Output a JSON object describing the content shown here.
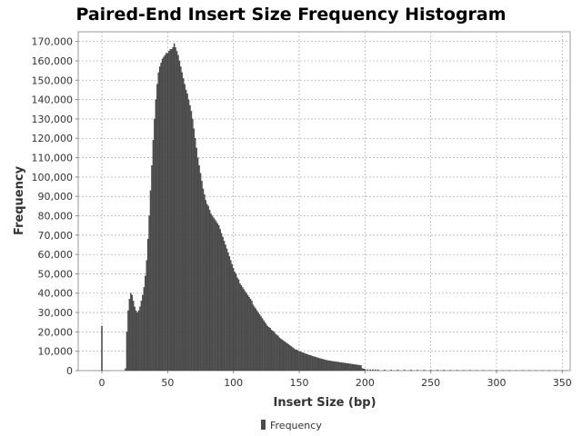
{
  "chart_data": {
    "type": "bar",
    "title": "Paired-End Insert Size Frequency Histogram",
    "xlabel": "Insert Size (bp)",
    "ylabel": "Frequency",
    "xlim": [
      -18,
      356
    ],
    "ylim": [
      0,
      175000
    ],
    "x_ticks": [
      0,
      50,
      100,
      150,
      200,
      250,
      300,
      350
    ],
    "y_ticks": [
      0,
      10000,
      20000,
      30000,
      40000,
      50000,
      60000,
      70000,
      80000,
      90000,
      100000,
      110000,
      120000,
      130000,
      140000,
      150000,
      160000,
      170000
    ],
    "x_tick_labels": [
      "0",
      "50",
      "100",
      "150",
      "200",
      "250",
      "300",
      "350"
    ],
    "y_tick_labels": [
      "0",
      "10,000",
      "20,000",
      "30,000",
      "40,000",
      "50,000",
      "60,000",
      "70,000",
      "80,000",
      "90,000",
      "100,000",
      "110,000",
      "120,000",
      "130,000",
      "140,000",
      "150,000",
      "160,000",
      "170,000"
    ],
    "grid": true,
    "legend_position": "bottom-center",
    "series": [
      {
        "name": "Frequency",
        "color": "#4a4a4a",
        "points": [
          [
            0,
            23000
          ],
          [
            18,
            1000
          ],
          [
            19,
            20000
          ],
          [
            20,
            31000
          ],
          [
            21,
            37000
          ],
          [
            22,
            40000
          ],
          [
            23,
            39000
          ],
          [
            24,
            36000
          ],
          [
            25,
            33000
          ],
          [
            26,
            31000
          ],
          [
            27,
            30000
          ],
          [
            28,
            31000
          ],
          [
            29,
            33000
          ],
          [
            30,
            36000
          ],
          [
            31,
            39000
          ],
          [
            32,
            43000
          ],
          [
            33,
            49000
          ],
          [
            34,
            57000
          ],
          [
            35,
            68000
          ],
          [
            36,
            80000
          ],
          [
            37,
            93000
          ],
          [
            38,
            106000
          ],
          [
            39,
            119000
          ],
          [
            40,
            130000
          ],
          [
            41,
            140000
          ],
          [
            42,
            148000
          ],
          [
            43,
            154000
          ],
          [
            44,
            157000
          ],
          [
            45,
            159000
          ],
          [
            46,
            161000
          ],
          [
            47,
            162000
          ],
          [
            48,
            163000
          ],
          [
            49,
            164000
          ],
          [
            50,
            164000
          ],
          [
            51,
            165000
          ],
          [
            52,
            166000
          ],
          [
            53,
            166000
          ],
          [
            54,
            167000
          ],
          [
            55,
            169000
          ],
          [
            56,
            167000
          ],
          [
            57,
            165000
          ],
          [
            58,
            163000
          ],
          [
            59,
            160000
          ],
          [
            60,
            157000
          ],
          [
            61,
            154000
          ],
          [
            62,
            151000
          ],
          [
            63,
            148000
          ],
          [
            64,
            145000
          ],
          [
            65,
            143000
          ],
          [
            66,
            140000
          ],
          [
            67,
            137000
          ],
          [
            68,
            134000
          ],
          [
            69,
            130000
          ],
          [
            70,
            125000
          ],
          [
            71,
            120000
          ],
          [
            72,
            115000
          ],
          [
            73,
            110000
          ],
          [
            74,
            106000
          ],
          [
            75,
            102000
          ],
          [
            76,
            98000
          ],
          [
            77,
            94000
          ],
          [
            78,
            91000
          ],
          [
            79,
            88000
          ],
          [
            80,
            86000
          ],
          [
            81,
            85000
          ],
          [
            82,
            83000
          ],
          [
            83,
            81000
          ],
          [
            84,
            80000
          ],
          [
            85,
            79000
          ],
          [
            86,
            78000
          ],
          [
            87,
            77000
          ],
          [
            88,
            76000
          ],
          [
            89,
            75000
          ],
          [
            90,
            73000
          ],
          [
            91,
            71000
          ],
          [
            92,
            69000
          ],
          [
            93,
            67000
          ],
          [
            94,
            65000
          ],
          [
            95,
            63000
          ],
          [
            96,
            61000
          ],
          [
            97,
            59000
          ],
          [
            98,
            57000
          ],
          [
            99,
            55000
          ],
          [
            100,
            53000
          ],
          [
            101,
            51000
          ],
          [
            102,
            50000
          ],
          [
            103,
            48000
          ],
          [
            104,
            47000
          ],
          [
            105,
            45000
          ],
          [
            106,
            44000
          ],
          [
            107,
            43000
          ],
          [
            108,
            42000
          ],
          [
            109,
            41000
          ],
          [
            110,
            40000
          ],
          [
            111,
            39000
          ],
          [
            112,
            38000
          ],
          [
            113,
            37000
          ],
          [
            114,
            36000
          ],
          [
            115,
            34000
          ],
          [
            116,
            33000
          ],
          [
            117,
            32000
          ],
          [
            118,
            31000
          ],
          [
            119,
            30000
          ],
          [
            120,
            29000
          ],
          [
            121,
            28000
          ],
          [
            122,
            27000
          ],
          [
            123,
            26000
          ],
          [
            124,
            25000
          ],
          [
            125,
            24000
          ],
          [
            126,
            23000
          ],
          [
            127,
            22500
          ],
          [
            128,
            22000
          ],
          [
            129,
            21000
          ],
          [
            130,
            20500
          ],
          [
            131,
            20000
          ],
          [
            132,
            19000
          ],
          [
            133,
            18500
          ],
          [
            134,
            18000
          ],
          [
            135,
            17000
          ],
          [
            136,
            16500
          ],
          [
            137,
            16000
          ],
          [
            138,
            15500
          ],
          [
            139,
            15000
          ],
          [
            140,
            14500
          ],
          [
            141,
            14000
          ],
          [
            142,
            13500
          ],
          [
            143,
            13000
          ],
          [
            144,
            12500
          ],
          [
            145,
            12000
          ],
          [
            146,
            11500
          ],
          [
            147,
            11000
          ],
          [
            148,
            10800
          ],
          [
            149,
            10500
          ],
          [
            150,
            10000
          ],
          [
            151,
            9800
          ],
          [
            152,
            9500
          ],
          [
            153,
            9200
          ],
          [
            154,
            9000
          ],
          [
            155,
            8700
          ],
          [
            156,
            8500
          ],
          [
            157,
            8200
          ],
          [
            158,
            8000
          ],
          [
            159,
            7800
          ],
          [
            160,
            7500
          ],
          [
            161,
            7300
          ],
          [
            162,
            7100
          ],
          [
            163,
            6900
          ],
          [
            164,
            6700
          ],
          [
            165,
            6500
          ],
          [
            166,
            6300
          ],
          [
            167,
            6100
          ],
          [
            168,
            5900
          ],
          [
            169,
            5700
          ],
          [
            170,
            5500
          ],
          [
            171,
            5400
          ],
          [
            172,
            5200
          ],
          [
            173,
            5100
          ],
          [
            174,
            5000
          ],
          [
            175,
            4900
          ],
          [
            176,
            4800
          ],
          [
            177,
            4700
          ],
          [
            178,
            4600
          ],
          [
            179,
            4500
          ],
          [
            180,
            4400
          ],
          [
            181,
            4300
          ],
          [
            182,
            4200
          ],
          [
            183,
            4100
          ],
          [
            184,
            4000
          ],
          [
            185,
            3900
          ],
          [
            186,
            3800
          ],
          [
            187,
            3700
          ],
          [
            188,
            3600
          ],
          [
            189,
            3500
          ],
          [
            190,
            3400
          ],
          [
            191,
            3300
          ],
          [
            192,
            3200
          ],
          [
            193,
            3100
          ],
          [
            194,
            3000
          ],
          [
            195,
            2900
          ],
          [
            196,
            2800
          ],
          [
            197,
            2700
          ],
          [
            198,
            1200
          ],
          [
            199,
            900
          ],
          [
            200,
            750
          ],
          [
            202,
            650
          ],
          [
            204,
            600
          ],
          [
            206,
            550
          ],
          [
            208,
            500
          ],
          [
            210,
            480
          ],
          [
            215,
            450
          ],
          [
            220,
            420
          ],
          [
            225,
            400
          ],
          [
            230,
            380
          ],
          [
            235,
            360
          ],
          [
            240,
            340
          ],
          [
            245,
            320
          ],
          [
            250,
            300
          ],
          [
            255,
            280
          ],
          [
            260,
            270
          ],
          [
            265,
            260
          ],
          [
            270,
            250
          ],
          [
            275,
            240
          ],
          [
            280,
            230
          ],
          [
            285,
            220
          ],
          [
            290,
            210
          ],
          [
            295,
            200
          ],
          [
            300,
            190
          ],
          [
            305,
            180
          ],
          [
            310,
            170
          ],
          [
            315,
            160
          ],
          [
            320,
            150
          ],
          [
            325,
            140
          ],
          [
            330,
            130
          ],
          [
            335,
            120
          ],
          [
            340,
            110
          ],
          [
            345,
            100
          ],
          [
            350,
            90
          ]
        ]
      }
    ]
  }
}
